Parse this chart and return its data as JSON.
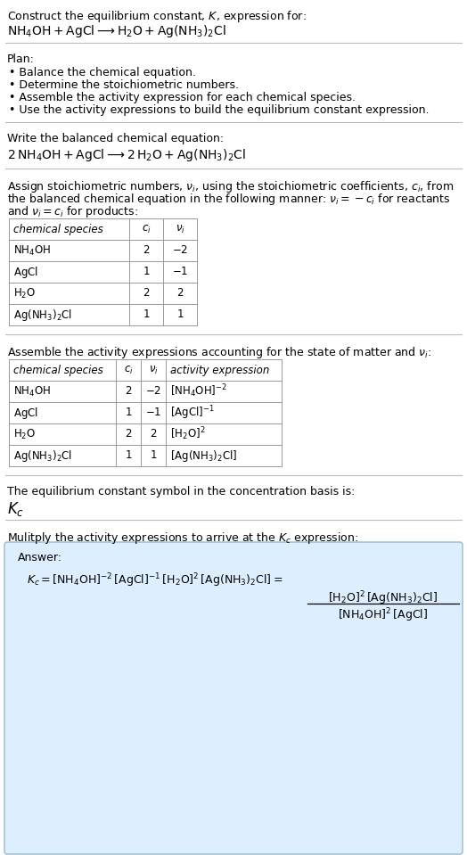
{
  "bg_color": "#ffffff",
  "text_color": "#000000",
  "table_border_color": "#999999",
  "answer_box_color": "#ddeeff",
  "answer_box_border": "#99bbcc",
  "title_line1": "Construct the equilibrium constant, $K$, expression for:",
  "plan_header": "Plan:",
  "plan_bullets": [
    "• Balance the chemical equation.",
    "• Determine the stoichiometric numbers.",
    "• Assemble the activity expression for each chemical species.",
    "• Use the activity expressions to build the equilibrium constant expression."
  ],
  "balanced_header": "Write the balanced chemical equation:",
  "stoich_header_line1": "Assign stoichiometric numbers, $\\nu_i$, using the stoichiometric coefficients, $c_i$, from",
  "stoich_header_line2": "the balanced chemical equation in the following manner: $\\nu_i = -c_i$ for reactants",
  "stoich_header_line3": "and $\\nu_i = c_i$ for products:",
  "table1_cols": [
    "chemical species",
    "$c_i$",
    "$\\nu_i$"
  ],
  "table1_rows": [
    [
      "$\\mathrm{NH_4OH}$",
      "2",
      "$-2$"
    ],
    [
      "$\\mathrm{AgCl}$",
      "1",
      "$-1$"
    ],
    [
      "$\\mathrm{H_2O}$",
      "2",
      "2"
    ],
    [
      "$\\mathrm{Ag(NH_3)_2Cl}$",
      "1",
      "1"
    ]
  ],
  "assemble_header": "Assemble the activity expressions accounting for the state of matter and $\\nu_i$:",
  "table2_cols": [
    "chemical species",
    "$c_i$",
    "$\\nu_i$",
    "activity expression"
  ],
  "table2_rows": [
    [
      "$\\mathrm{NH_4OH}$",
      "2",
      "$-2$",
      "$[\\mathrm{NH_4OH}]^{-2}$"
    ],
    [
      "$\\mathrm{AgCl}$",
      "1",
      "$-1$",
      "$[\\mathrm{AgCl}]^{-1}$"
    ],
    [
      "$\\mathrm{H_2O}$",
      "2",
      "2",
      "$[\\mathrm{H_2O}]^{2}$"
    ],
    [
      "$\\mathrm{Ag(NH_3)_2Cl}$",
      "1",
      "1",
      "$[\\mathrm{Ag(NH_3)_2Cl}]$"
    ]
  ],
  "kc_header": "The equilibrium constant symbol in the concentration basis is:",
  "multiply_header": "Mulitply the activity expressions to arrive at the $K_c$ expression:",
  "answer_label": "Answer:"
}
